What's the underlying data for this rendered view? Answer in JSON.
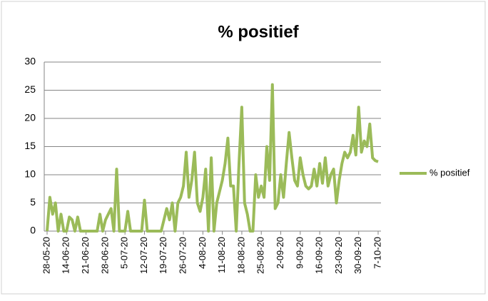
{
  "chart_data": {
    "type": "line",
    "title": "% positief",
    "categories": [
      "28-05-20",
      null,
      null,
      null,
      null,
      null,
      null,
      "14-06-20",
      null,
      null,
      null,
      null,
      null,
      null,
      "21-06-20",
      null,
      null,
      null,
      null,
      null,
      null,
      "28-06-20",
      null,
      null,
      null,
      null,
      null,
      null,
      "5-07-20",
      null,
      null,
      null,
      null,
      null,
      null,
      "12-07-20",
      null,
      null,
      null,
      null,
      null,
      null,
      "19-07-20",
      null,
      null,
      null,
      null,
      null,
      null,
      "26-07-20",
      null,
      null,
      null,
      null,
      null,
      null,
      "4-08-20",
      null,
      null,
      null,
      null,
      null,
      null,
      "11-08-20",
      null,
      null,
      null,
      null,
      null,
      null,
      "18-08-20",
      null,
      null,
      null,
      null,
      null,
      null,
      "25-08-20",
      null,
      null,
      null,
      null,
      null,
      null,
      "2-09-20",
      null,
      null,
      null,
      null,
      null,
      null,
      "9-09-20",
      null,
      null,
      null,
      null,
      null,
      null,
      "16-09-20",
      null,
      null,
      null,
      null,
      null,
      null,
      "23-09-20",
      null,
      null,
      null,
      null,
      null,
      null,
      "30-09-20",
      null,
      null,
      null,
      null,
      null,
      null,
      "7-10-20"
    ],
    "series": [
      {
        "name": "% positief",
        "color": "#9bbb59",
        "values": [
          0,
          6,
          3,
          5,
          0,
          3,
          0,
          0,
          2.5,
          2,
          0,
          2.5,
          0,
          0,
          0,
          0,
          0,
          0,
          0,
          3,
          0,
          2,
          3,
          4,
          0,
          11,
          0,
          0,
          0,
          3.5,
          0,
          0,
          0,
          0,
          0,
          5.5,
          0,
          0,
          0,
          0,
          0,
          0,
          2,
          4,
          2,
          5,
          0,
          5,
          6,
          8,
          14,
          6,
          9,
          14,
          5,
          3.5,
          6,
          11,
          0,
          13,
          0,
          5,
          7,
          9,
          12,
          16.5,
          8,
          8,
          0,
          12,
          22,
          5,
          3,
          0,
          0,
          10,
          6,
          8,
          6,
          15,
          9,
          26,
          4,
          5,
          10,
          6,
          12,
          17.5,
          13,
          9,
          8,
          13,
          10,
          8,
          7.5,
          8,
          11,
          8,
          12,
          8.5,
          13,
          8,
          10,
          11,
          5,
          9,
          12,
          14,
          13,
          14,
          17,
          13.5,
          22,
          14,
          16,
          15,
          19,
          13,
          12.5,
          12.3
        ]
      }
    ],
    "ylim": [
      0,
      30
    ],
    "yticks": [
      0,
      5,
      10,
      15,
      20,
      25,
      30
    ],
    "grid": true,
    "legend": "right"
  }
}
